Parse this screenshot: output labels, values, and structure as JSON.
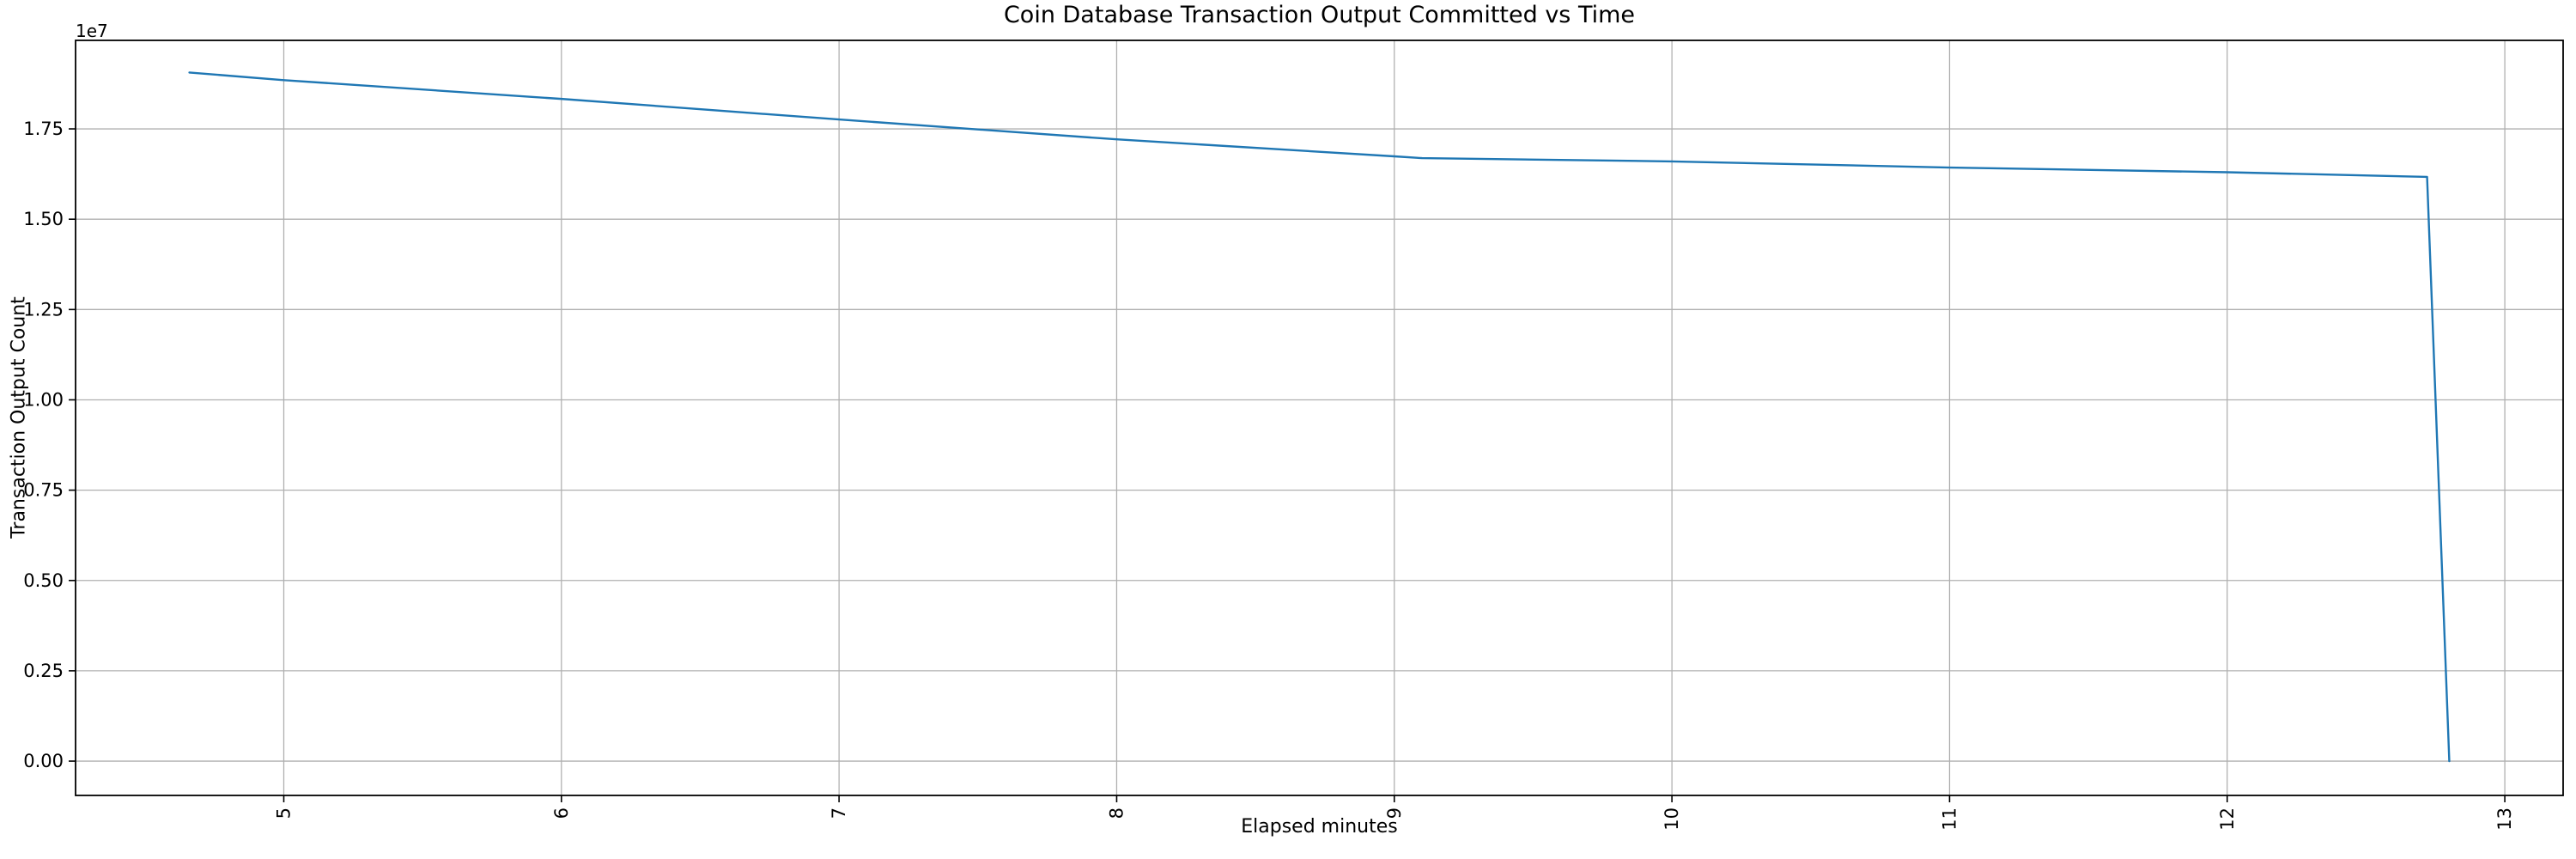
{
  "chart_data": {
    "type": "line",
    "title": "Coin Database Transaction Output Committed vs Time",
    "xlabel": "Elapsed minutes",
    "ylabel": "Transaction Output Count",
    "offset_text": "1e7",
    "x": [
      4.66,
      5.0,
      6.0,
      7.0,
      8.0,
      9.0,
      9.1,
      10.0,
      11.0,
      12.0,
      12.72,
      12.8
    ],
    "y": [
      19060000,
      18850000,
      18330000,
      17760000,
      17210000,
      16740000,
      16690000,
      16600000,
      16430000,
      16300000,
      16170000,
      0
    ],
    "xlim": [
      4.25,
      13.21
    ],
    "ylim": [
      -950000,
      19950000
    ],
    "x_ticks": [
      5,
      6,
      7,
      8,
      9,
      10,
      11,
      12,
      13
    ],
    "x_tick_labels": [
      "5",
      "6",
      "7",
      "8",
      "9",
      "10",
      "11",
      "12",
      "13"
    ],
    "x_tick_rotation": 90,
    "y_ticks": [
      0,
      2500000,
      5000000,
      7500000,
      10000000,
      12500000,
      15000000,
      17500000
    ],
    "y_tick_labels": [
      "0.00",
      "0.25",
      "0.50",
      "0.75",
      "1.00",
      "1.25",
      "1.50",
      "1.75"
    ],
    "grid": true,
    "legend": null,
    "line_color": "#1f77b4",
    "grid_color": "#b0b0b0",
    "spine_color": "#000000",
    "background_color": "#ffffff"
  }
}
